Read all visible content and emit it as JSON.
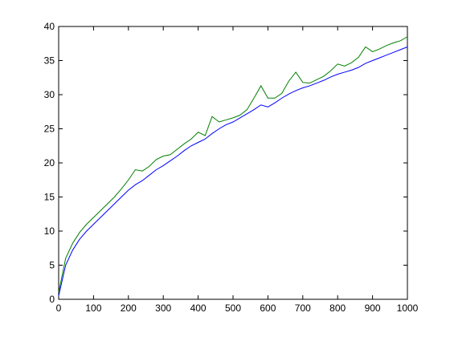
{
  "chart_data": {
    "type": "line",
    "x": [
      0,
      20,
      40,
      60,
      80,
      100,
      120,
      140,
      160,
      180,
      200,
      220,
      240,
      260,
      280,
      300,
      320,
      340,
      360,
      380,
      400,
      420,
      440,
      460,
      480,
      500,
      520,
      540,
      560,
      580,
      600,
      620,
      640,
      660,
      680,
      700,
      720,
      740,
      760,
      780,
      800,
      820,
      840,
      860,
      880,
      900,
      920,
      940,
      960,
      980,
      1000
    ],
    "series": [
      {
        "color": "#0000ff",
        "values": [
          0.5,
          5,
          7.2,
          8.8,
          10,
          11,
          12,
          13,
          14,
          15,
          16,
          16.8,
          17.4,
          18.2,
          19,
          19.6,
          20.3,
          21,
          21.8,
          22.5,
          23,
          23.5,
          24.3,
          25,
          25.6,
          26,
          26.6,
          27.2,
          27.8,
          28.5,
          28.2,
          28.8,
          29.5,
          30.1,
          30.6,
          31,
          31.3,
          31.7,
          32.1,
          32.6,
          33,
          33.3,
          33.6,
          34,
          34.6,
          35,
          35.4,
          35.8,
          36.2,
          36.6,
          37
        ]
      },
      {
        "color": "#008000",
        "values": [
          1,
          6,
          8.2,
          9.8,
          11,
          12,
          13,
          14,
          15,
          16.2,
          17.5,
          19,
          18.8,
          19.5,
          20.5,
          21,
          21.2,
          22,
          22.8,
          23.5,
          24.5,
          24,
          26.8,
          26,
          26.3,
          26.6,
          27,
          27.8,
          29.5,
          31.3,
          29.5,
          29.5,
          30.2,
          32,
          33.3,
          31.8,
          31.7,
          32.2,
          32.7,
          33.5,
          34.5,
          34.2,
          34.7,
          35.5,
          37,
          36.3,
          36.7,
          37.2,
          37.6,
          37.9,
          38.5
        ]
      }
    ],
    "xlim": [
      0,
      1000
    ],
    "xticks": [
      0,
      100,
      200,
      300,
      400,
      500,
      600,
      700,
      800,
      900,
      1000
    ],
    "ylim": [
      0,
      40
    ],
    "yticks": [
      0,
      5,
      10,
      15,
      20,
      25,
      30,
      35,
      40
    ]
  }
}
